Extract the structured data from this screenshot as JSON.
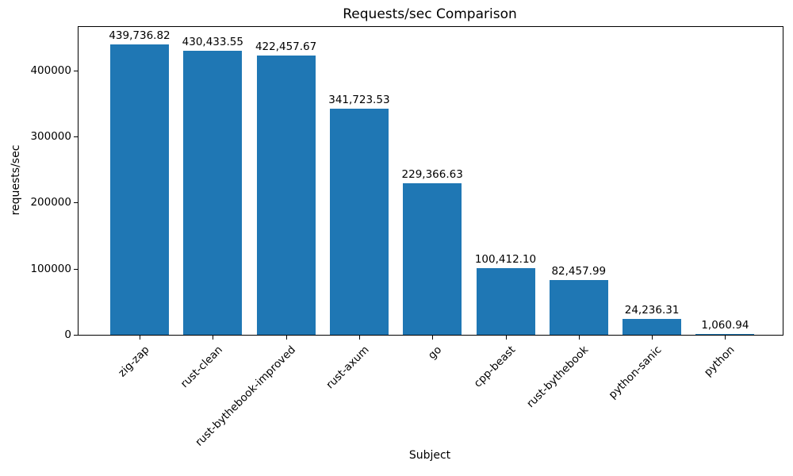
{
  "chart_data": {
    "type": "bar",
    "title": "Requests/sec Comparison",
    "xlabel": "Subject",
    "ylabel": "requests/sec",
    "categories": [
      "zig-zap",
      "rust-clean",
      "rust-bythebook-improved",
      "rust-axum",
      "go",
      "cpp-beast",
      "rust-bythebook",
      "python-sanic",
      "python"
    ],
    "values": [
      439736.82,
      430433.55,
      422457.67,
      341723.53,
      229366.63,
      100412.1,
      82457.99,
      24236.31,
      1060.94
    ],
    "bar_labels": [
      "439,736.82",
      "430,433.55",
      "422,457.67",
      "341,723.53",
      "229,366.63",
      "100,412.10",
      "82,457.99",
      "24,236.31",
      "1,060.94"
    ],
    "y_ticks": [
      0,
      100000,
      200000,
      300000,
      400000
    ],
    "y_tick_labels": [
      "0",
      "100000",
      "200000",
      "300000",
      "400000"
    ],
    "ylim": [
      0,
      466000
    ],
    "bar_color": "#1f77b4",
    "grid": false,
    "legend_position": "none"
  }
}
